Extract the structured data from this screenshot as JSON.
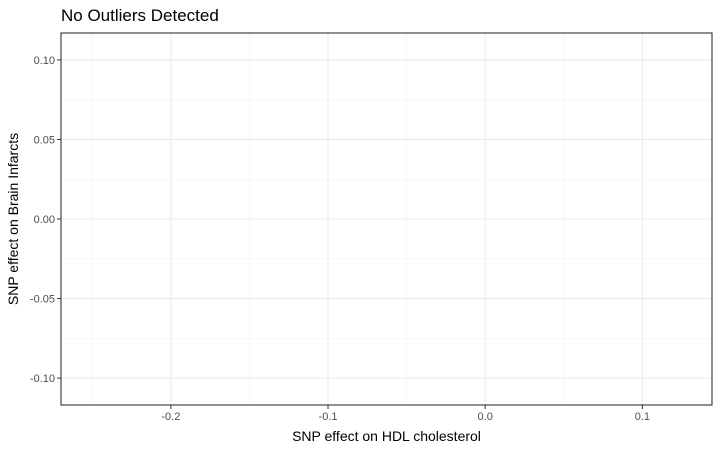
{
  "chart_data": {
    "type": "scatter",
    "title": "No Outliers Detected",
    "xlabel": "SNP effect on HDL cholesterol",
    "ylabel": "SNP effect on Brain Infarcts",
    "xlim": [
      -0.2699,
      0.1443
    ],
    "ylim": [
      -0.1169,
      0.1169
    ],
    "x_ticks": [
      -0.2,
      -0.1,
      0.0,
      0.1
    ],
    "x_tick_labels": [
      "-0.2",
      "-0.1",
      "0.0",
      "0.1"
    ],
    "y_ticks": [
      -0.1,
      -0.05,
      0.0,
      0.05,
      0.1
    ],
    "y_tick_labels": [
      "-0.10",
      "-0.05",
      "0.00",
      "0.05",
      "0.10"
    ],
    "grid": true,
    "legend": "none",
    "series": [
      {
        "points": []
      }
    ]
  }
}
